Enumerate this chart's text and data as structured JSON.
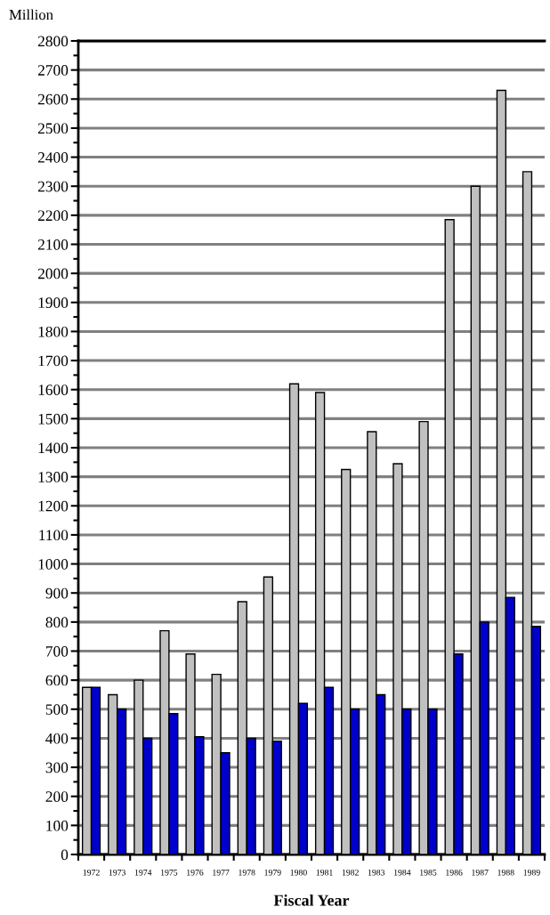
{
  "chart_data": {
    "type": "bar",
    "xlabel": "Fiscal Year",
    "ylabel": "Million",
    "categories": [
      "1972",
      "1973",
      "1974",
      "1975",
      "1976",
      "1977",
      "1978",
      "1979",
      "1980",
      "1981",
      "1982",
      "1983",
      "1984",
      "1985",
      "1986",
      "1987",
      "1988",
      "1989"
    ],
    "series": [
      {
        "color": "#c0c0c0",
        "values": [
          575,
          550,
          600,
          770,
          690,
          620,
          870,
          955,
          1620,
          1590,
          1325,
          1455,
          1345,
          1490,
          2185,
          2300,
          2630,
          2350
        ]
      },
      {
        "color": "#0000cc",
        "values": [
          575,
          500,
          400,
          485,
          405,
          350,
          400,
          390,
          520,
          575,
          500,
          550,
          500,
          500,
          690,
          800,
          885,
          785
        ]
      }
    ],
    "ylim": [
      0,
      2800
    ],
    "yticks": [
      0,
      100,
      200,
      300,
      400,
      500,
      600,
      700,
      800,
      900,
      1000,
      1100,
      1200,
      1300,
      1400,
      1500,
      1600,
      1700,
      1800,
      1900,
      2000,
      2100,
      2200,
      2300,
      2400,
      2500,
      2600,
      2700,
      2800
    ],
    "grid": "y",
    "legend": false
  }
}
